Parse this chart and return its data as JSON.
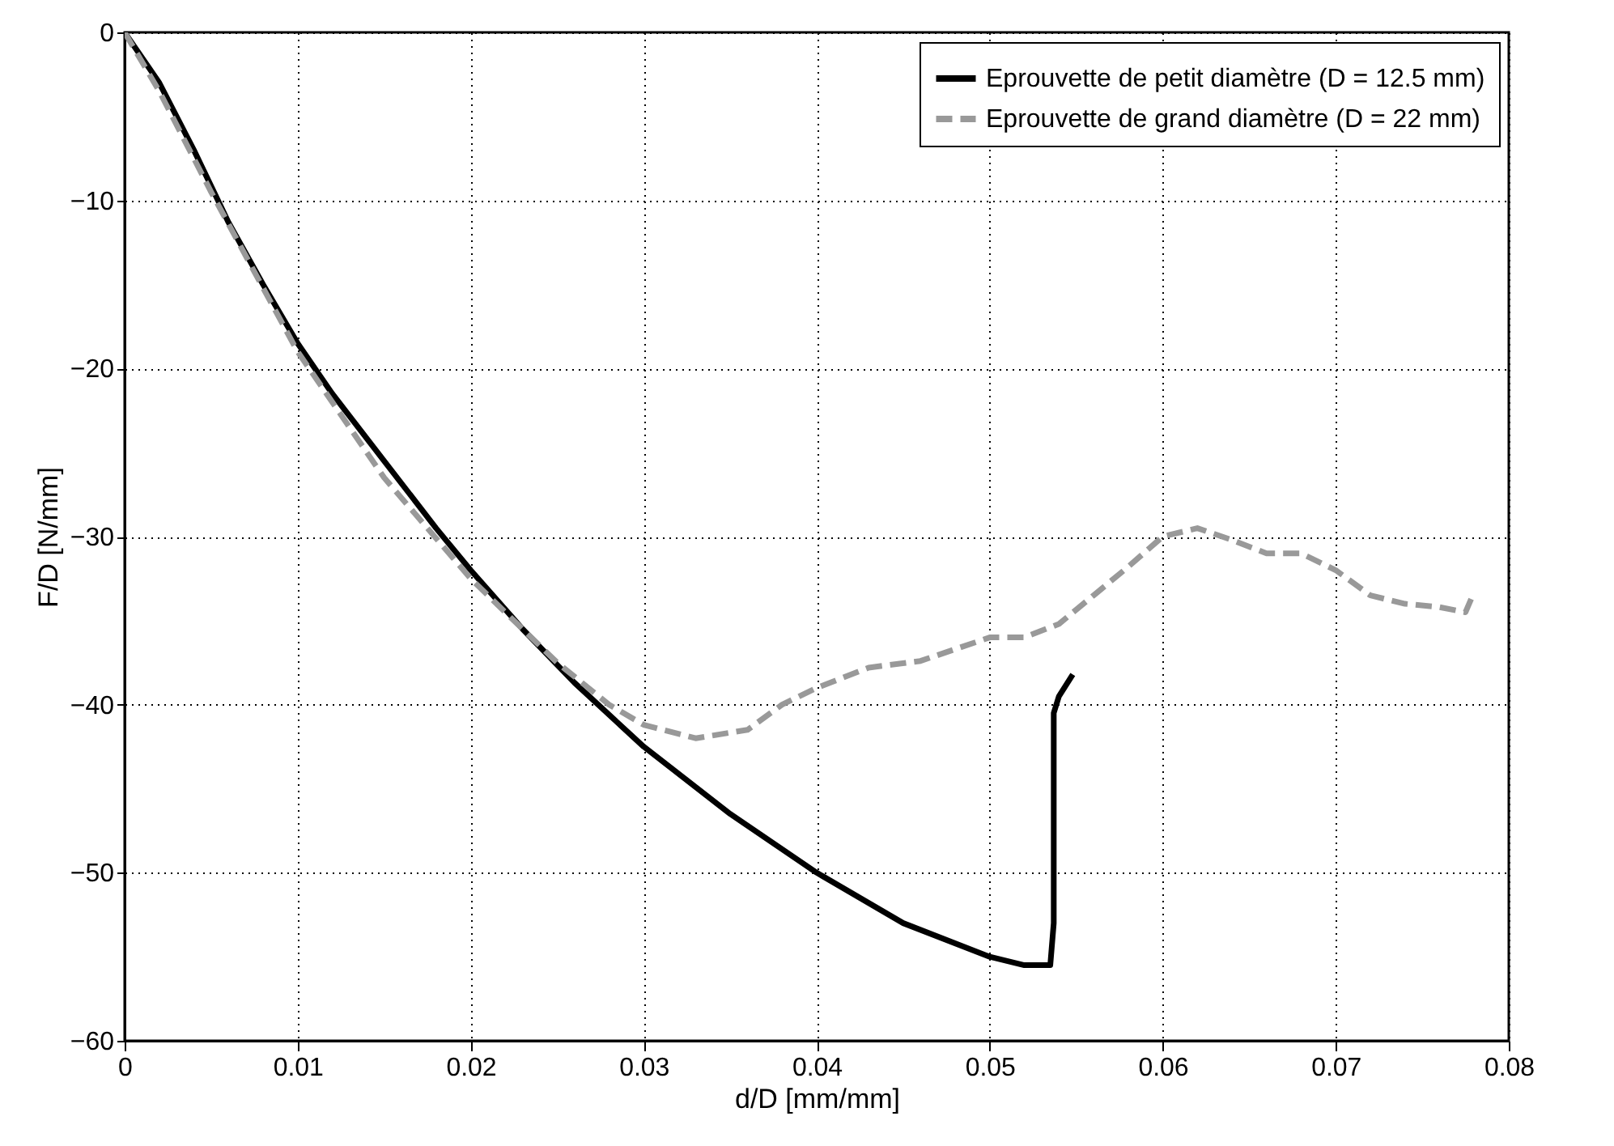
{
  "chart_data": {
    "type": "line",
    "xlabel": "d/D [mm/mm]",
    "ylabel": "F/D [N/mm]",
    "xlim": [
      0,
      0.08
    ],
    "ylim": [
      -60,
      0
    ],
    "xticks": [
      0,
      0.01,
      0.02,
      0.03,
      0.04,
      0.05,
      0.06,
      0.07,
      0.08
    ],
    "yticks": [
      -60,
      -50,
      -40,
      -30,
      -20,
      -10,
      0
    ],
    "grid": true,
    "legend": "top right",
    "series": [
      {
        "name": "Eprouvette de petit diamètre (D = 12.5 mm)",
        "color": "#000000",
        "line_style": "solid",
        "x": [
          0,
          0.002,
          0.004,
          0.006,
          0.008,
          0.01,
          0.012,
          0.015,
          0.018,
          0.02,
          0.023,
          0.026,
          0.03,
          0.035,
          0.04,
          0.045,
          0.05,
          0.052,
          0.0535,
          0.0537,
          0.0537,
          0.054,
          0.0548
        ],
        "values": [
          0,
          -3,
          -7,
          -11.3,
          -15,
          -18.5,
          -21.5,
          -25.5,
          -29.5,
          -32,
          -35.5,
          -38.7,
          -42.5,
          -46.5,
          -50,
          -53,
          -55,
          -55.5,
          -55.5,
          -53,
          -40.5,
          -39.5,
          -38.2
        ]
      },
      {
        "name": "Eprouvette de grand diamètre (D = 22 mm)",
        "color": "#999999",
        "line_style": "dashed",
        "x": [
          0,
          0.002,
          0.005,
          0.01,
          0.015,
          0.02,
          0.025,
          0.028,
          0.03,
          0.033,
          0.036,
          0.038,
          0.04,
          0.043,
          0.046,
          0.048,
          0.05,
          0.052,
          0.054,
          0.056,
          0.058,
          0.06,
          0.062,
          0.064,
          0.066,
          0.068,
          0.07,
          0.072,
          0.074,
          0.076,
          0.0775,
          0.078
        ],
        "values": [
          0,
          -3.5,
          -9.5,
          -19,
          -26.5,
          -32.5,
          -37.5,
          -40,
          -41.2,
          -42,
          -41.5,
          -40,
          -39,
          -37.8,
          -37.4,
          -36.7,
          -36,
          -36,
          -35.2,
          -33.5,
          -31.8,
          -30,
          -29.5,
          -30.2,
          -31,
          -31,
          -32,
          -33.5,
          -34,
          -34.2,
          -34.5,
          -33.3
        ]
      }
    ]
  }
}
